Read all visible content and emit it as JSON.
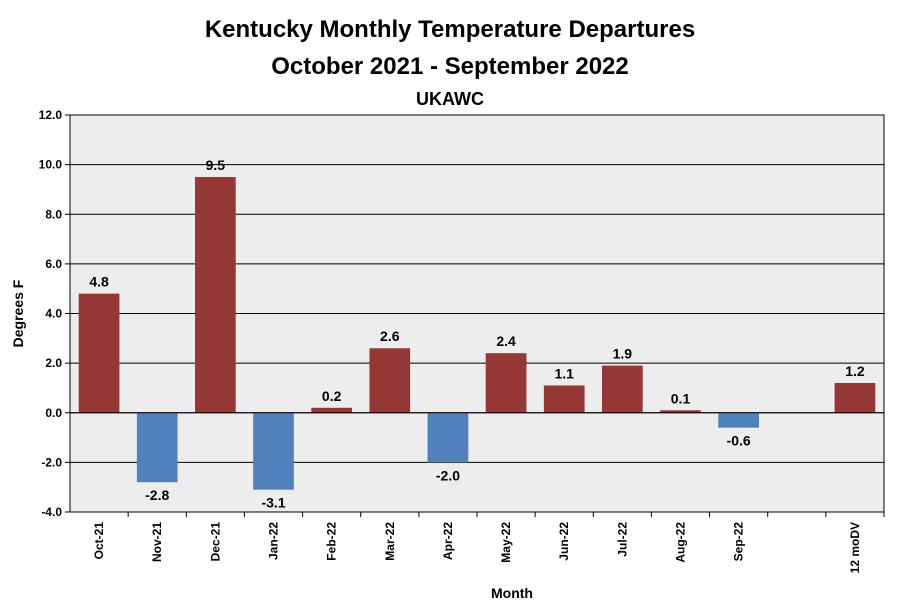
{
  "chart_data": {
    "type": "bar",
    "title": "Kentucky Monthly Temperature Departures",
    "subtitle": "October 2021 - September 2022",
    "source": "UKAWC",
    "xlabel": "Month",
    "ylabel": "Degrees F",
    "ylim": [
      -4,
      12
    ],
    "ytick_step": 2,
    "grid": true,
    "categories": [
      "Oct-21",
      "Nov-21",
      "Dec-21",
      "Jan-22",
      "Feb-22",
      "Mar-22",
      "Apr-22",
      "May-22",
      "Jun-22",
      "Jul-22",
      "Aug-22",
      "Sep-22",
      "",
      "12 moDV"
    ],
    "values": [
      4.8,
      -2.8,
      9.5,
      -3.1,
      0.2,
      2.6,
      -2.0,
      2.4,
      1.1,
      1.9,
      0.1,
      -0.6,
      null,
      1.2
    ],
    "value_labels": [
      "4.8",
      "-2.8",
      "9.5",
      "-3.1",
      "0.2",
      "2.6",
      "-2.0",
      "2.4",
      "1.1",
      "1.9",
      "0.1",
      "-0.6",
      "",
      "1.2"
    ],
    "colors": {
      "positive": "#953735",
      "negative": "#4f81bd",
      "plot_bg": "#ededed"
    }
  }
}
